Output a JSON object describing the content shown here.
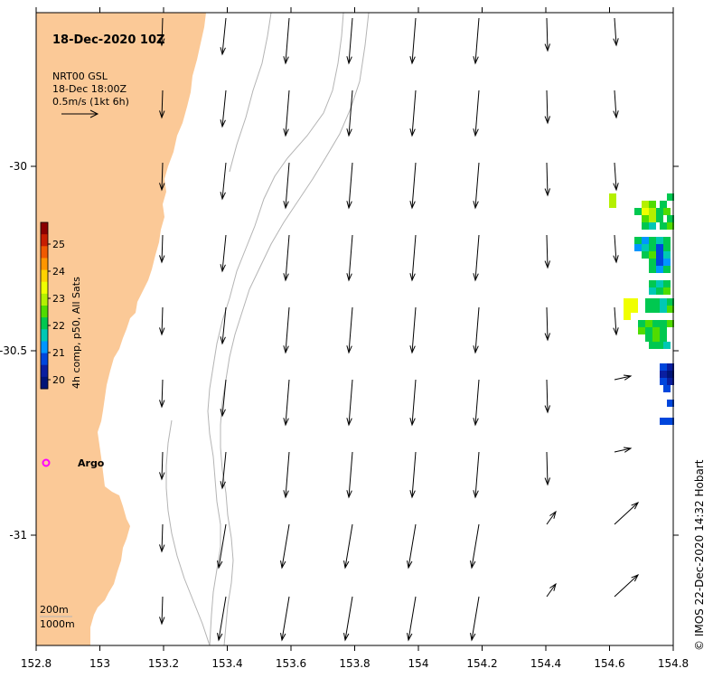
{
  "title": "18-Dec-2020 10Z",
  "product": {
    "line1": "NRT00 GSL",
    "line2": "18-Dec 18:00Z",
    "line3": "0.5m/s (1kt 6h)"
  },
  "x_ticks": [
    "152.8",
    "153",
    "153.2",
    "153.4",
    "153.6",
    "153.8",
    "154",
    "154.2",
    "154.4",
    "154.6",
    "154.8"
  ],
  "y_ticks": [
    "-30",
    "-30.5",
    "-31"
  ],
  "colorbar": {
    "label": "4h comp, p50, All Sats",
    "ticks": [
      "25",
      "24",
      "23",
      "22",
      "21",
      "20"
    ],
    "colors": [
      "#8b0000",
      "#c81e00",
      "#f05a00",
      "#ff9600",
      "#ffd200",
      "#f0ff00",
      "#b4f000",
      "#50dc00",
      "#00c850",
      "#00c8b4",
      "#0096ff",
      "#0046dc",
      "#0a1ea0",
      "#001478"
    ]
  },
  "argo_label": "Argo",
  "isobaths": {
    "shallow": "200m",
    "deep": "1000m"
  },
  "credit": "© IMOS 22-Dec-2020 14:32 Hobart",
  "colors": {
    "land": "#fbc997",
    "contour": "#b4b4b4",
    "argo": "#ff00ff"
  }
}
